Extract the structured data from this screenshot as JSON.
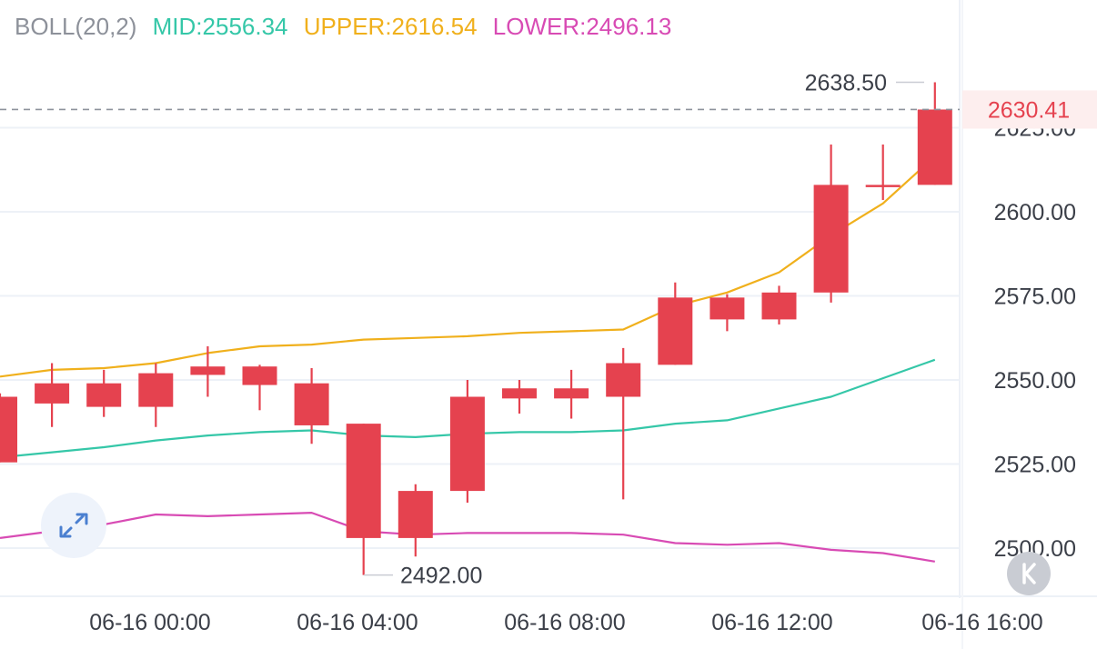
{
  "indicator": {
    "name": "BOLL(20,2)",
    "mid": "MID:2556.34",
    "upper": "UPPER:2616.54",
    "lower": "LOWER:2496.13"
  },
  "last_price": "2630.41",
  "markers": {
    "high": "2638.50",
    "low": "2492.00"
  },
  "colors": {
    "up": "#e5424f",
    "down": "#33b156",
    "mid": "#35c7a8",
    "upper": "#f0b01c",
    "lower": "#d84bb4",
    "axis_text": "#3b3f48",
    "grid": "#edf1f7",
    "last_price_bg": "#fdeeee",
    "label_gray": "#8d919a"
  },
  "icons": {
    "expand": "expand-arrows-icon",
    "collapse": "collapse-k-icon"
  },
  "chart_data": {
    "type": "candlestick",
    "y_ticks": [
      "2500.00",
      "2525.00",
      "2550.00",
      "2575.00",
      "2600.00",
      "2625.00"
    ],
    "x_ticks": [
      "06-16 00:00",
      "06-16 04:00",
      "06-16 08:00",
      "06-16 12:00",
      "06-16 16:00"
    ],
    "ylim": [
      2492,
      2638.5
    ],
    "candles": [
      {
        "o": 2525.5,
        "h": 2546.0,
        "l": 2525.5,
        "c": 2545.0
      },
      {
        "o": 2543.0,
        "h": 2555.0,
        "l": 2536.0,
        "c": 2549.0
      },
      {
        "o": 2542.0,
        "h": 2553.0,
        "l": 2539.0,
        "c": 2549.0
      },
      {
        "o": 2542.0,
        "h": 2555.0,
        "l": 2536.0,
        "c": 2552.0
      },
      {
        "o": 2551.5,
        "h": 2560.0,
        "l": 2545.0,
        "c": 2554.0
      },
      {
        "o": 2548.5,
        "h": 2554.5,
        "l": 2541.0,
        "c": 2554.0
      },
      {
        "o": 2536.5,
        "h": 2553.5,
        "l": 2531.0,
        "c": 2549.0
      },
      {
        "o": 2503.0,
        "h": 2537.0,
        "l": 2492.0,
        "c": 2537.0
      },
      {
        "o": 2503.0,
        "h": 2519.0,
        "l": 2497.5,
        "c": 2517.0
      },
      {
        "o": 2517.0,
        "h": 2550.0,
        "l": 2513.5,
        "c": 2545.0
      },
      {
        "o": 2544.5,
        "h": 2550.0,
        "l": 2540.0,
        "c": 2547.5
      },
      {
        "o": 2544.5,
        "h": 2553.0,
        "l": 2538.5,
        "c": 2547.5
      },
      {
        "o": 2545.0,
        "h": 2559.5,
        "l": 2514.5,
        "c": 2555.0
      },
      {
        "o": 2554.5,
        "h": 2579.0,
        "l": 2554.5,
        "c": 2574.5
      },
      {
        "o": 2568.0,
        "h": 2575.5,
        "l": 2564.5,
        "c": 2574.5
      },
      {
        "o": 2568.0,
        "h": 2578.0,
        "l": 2566.5,
        "c": 2576.0
      },
      {
        "o": 2576.0,
        "h": 2620.0,
        "l": 2573.0,
        "c": 2608.0
      },
      {
        "o": 2608.0,
        "h": 2620.0,
        "l": 2603.5,
        "c": 2608.0
      },
      {
        "o": 2608.0,
        "h": 2638.5,
        "l": 2608.0,
        "c": 2630.41
      }
    ],
    "upper": [
      2551.0,
      2553.0,
      2553.5,
      2555.0,
      2558.0,
      2560.0,
      2560.5,
      2562.0,
      2562.5,
      2563.0,
      2564.0,
      2564.5,
      2565.0,
      2572.0,
      2576.0,
      2582.0,
      2593.0,
      2602.5,
      2616.5
    ],
    "mid": [
      2527.0,
      2528.5,
      2530.0,
      2532.0,
      2533.5,
      2534.5,
      2535.0,
      2533.5,
      2533.0,
      2534.0,
      2534.5,
      2534.5,
      2535.0,
      2537.0,
      2538.0,
      2541.5,
      2545.0,
      2550.5,
      2556.0
    ],
    "lower": [
      2503.0,
      2505.0,
      2507.0,
      2510.0,
      2509.5,
      2510.0,
      2510.5,
      2505.0,
      2504.0,
      2504.5,
      2504.5,
      2504.5,
      2504.0,
      2501.5,
      2501.0,
      2501.5,
      2499.5,
      2498.5,
      2496.0
    ]
  }
}
